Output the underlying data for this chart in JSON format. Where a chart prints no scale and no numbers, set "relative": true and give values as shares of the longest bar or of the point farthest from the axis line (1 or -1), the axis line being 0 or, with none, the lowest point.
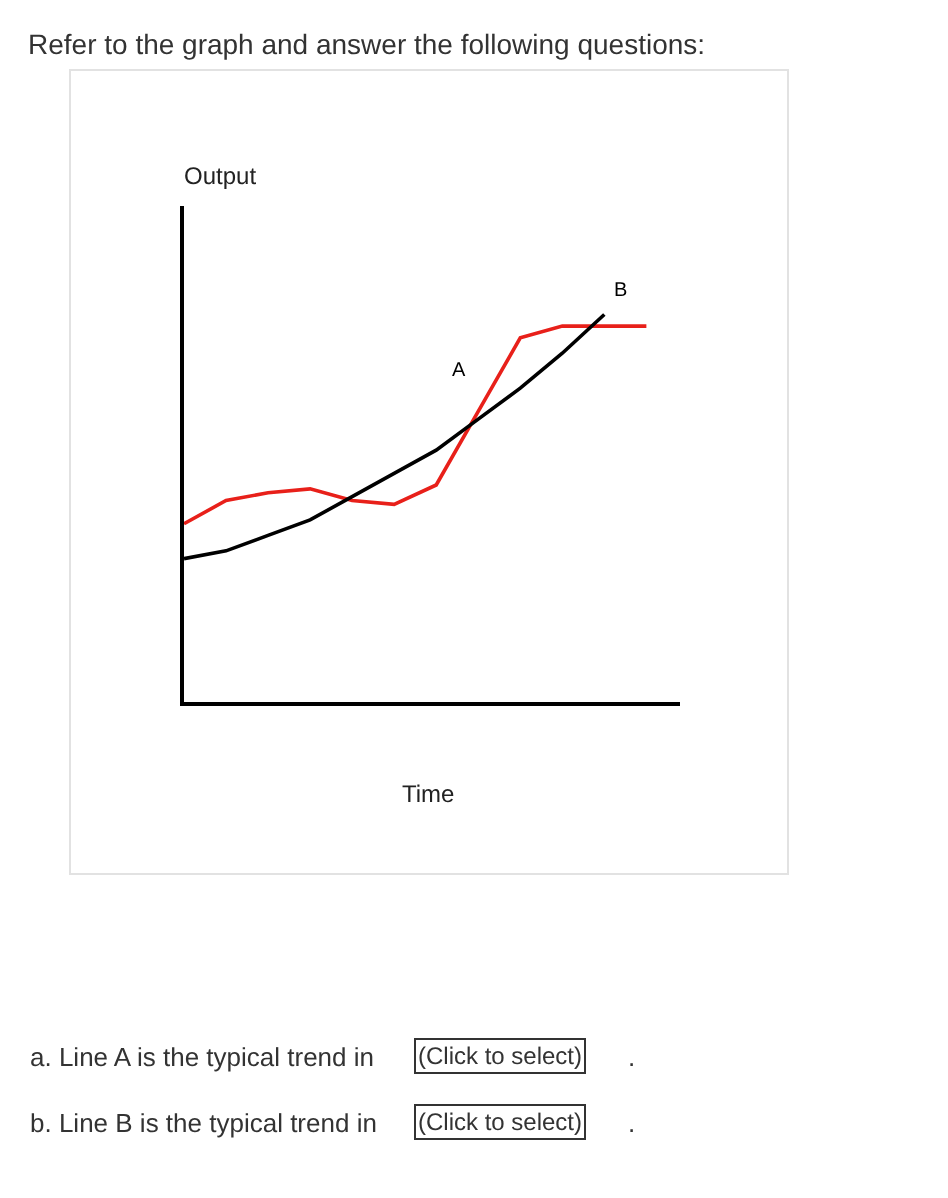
{
  "chart_data": {
    "type": "line",
    "relative": true,
    "title": "Refer to the graph and answer the following questions:",
    "xlabel": "Time",
    "categories": [
      null,
      null,
      null,
      null,
      null,
      null,
      null,
      null,
      null,
      null,
      null,
      null
    ],
    "series": [
      {
        "name": "A",
        "color": "#e8201a",
        "values": [
          0.46,
          0.52,
          0.54,
          0.55,
          0.52,
          0.51,
          0.56,
          0.75,
          0.94,
          0.97,
          0.97,
          0.97
        ]
      },
      {
        "name": "B",
        "color": "#000000",
        "values": [
          0.37,
          0.39,
          0.43,
          0.47,
          0.53,
          0.59,
          0.65,
          0.73,
          0.81,
          0.9,
          1.0,
          null
        ]
      }
    ],
    "annotations": [
      "a. Line A is the typical trend in",
      "(Click to select)",
      ".",
      "b. Line B is the typical trend in",
      "(Click to select)",
      ".",
      "Output"
    ],
    "legend": false,
    "marker": "none",
    "line_style": "solid"
  }
}
